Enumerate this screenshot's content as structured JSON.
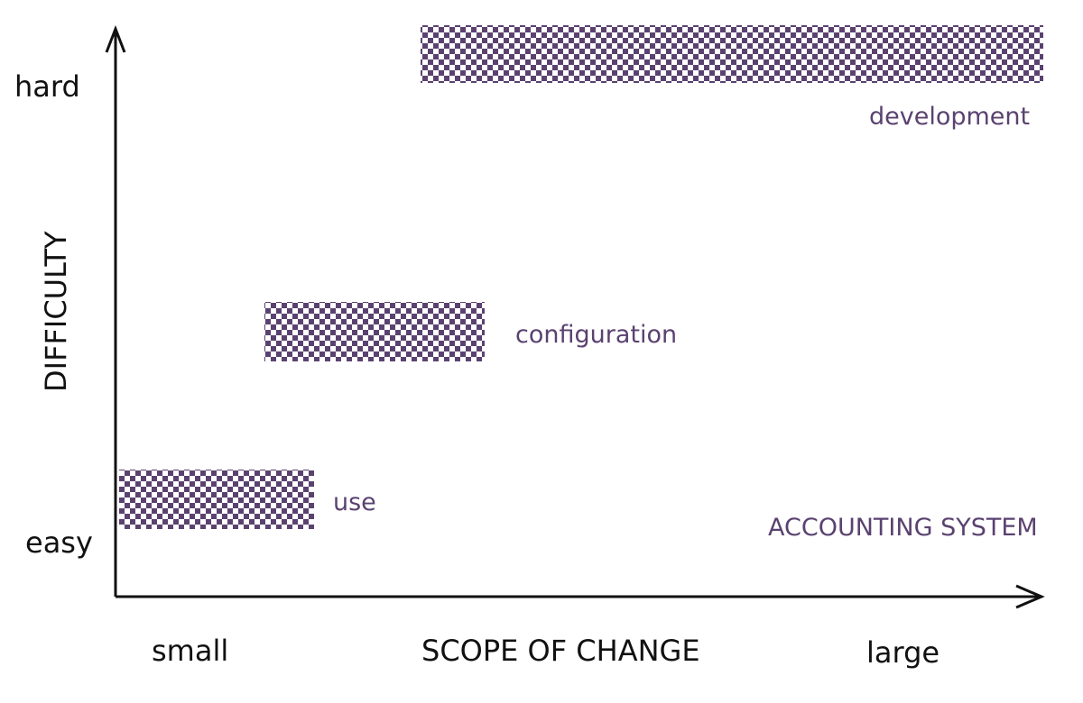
{
  "colors": {
    "accent": "#5a4270",
    "text": "#111111",
    "pattern_light": "#ffffff"
  },
  "axes": {
    "y_label": "DIFFICULTY",
    "y_high": "hard",
    "y_low": "easy",
    "x_label": "SCOPE OF CHANGE",
    "x_low": "small",
    "x_high": "large"
  },
  "bands": {
    "development": "development",
    "configuration": "configuration",
    "use": "use"
  },
  "system_label": "ACCOUNTING SYSTEM"
}
